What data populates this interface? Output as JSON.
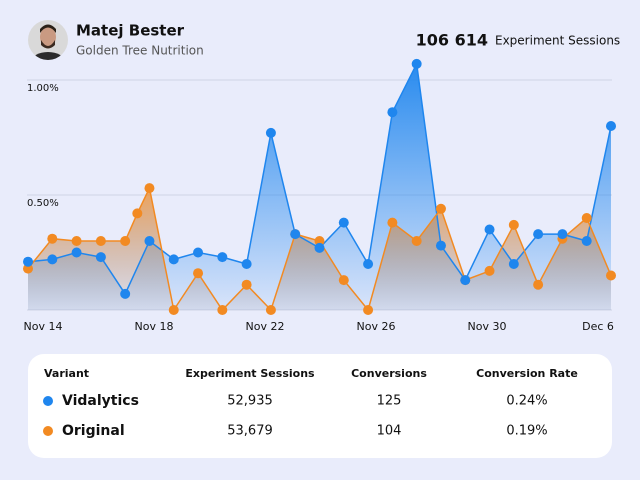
{
  "header": {
    "name": "Matej Bester",
    "company": "Golden Tree Nutrition",
    "total": "106 614",
    "total_label": "Experiment Sessions"
  },
  "chart_data": {
    "type": "line",
    "series": [
      {
        "name": "Vidalytics",
        "color": "#1f86ee",
        "x": [
          0,
          1,
          2,
          3,
          4,
          5,
          6,
          7,
          8,
          9,
          10,
          11,
          12,
          13,
          14,
          15,
          16,
          17,
          18,
          19,
          20,
          21,
          22,
          23,
          24
        ],
        "values": [
          0.21,
          0.22,
          0.25,
          0.23,
          0.07,
          0.3,
          0.22,
          0.25,
          0.23,
          0.2,
          0.77,
          0.33,
          0.27,
          0.38,
          0.2,
          0.86,
          1.07,
          0.28,
          0.13,
          0.35,
          0.2,
          0.33,
          0.33,
          0.3,
          0.8
        ]
      },
      {
        "name": "Original",
        "color": "#f28a22",
        "x": [
          0,
          1,
          2,
          3,
          4,
          4.5,
          5,
          6,
          7,
          8,
          9,
          10,
          11,
          12,
          13,
          14,
          15,
          16,
          17,
          18,
          19,
          20,
          21,
          22,
          23,
          24
        ],
        "values": [
          0.18,
          0.31,
          0.3,
          0.3,
          0.3,
          0.42,
          0.53,
          0,
          0.16,
          0,
          0.11,
          0,
          0.33,
          0.3,
          0.13,
          0,
          0.38,
          0.3,
          0.44,
          0.13,
          0.17,
          0.37,
          0.11,
          0.31,
          0.4,
          0.15
        ]
      }
    ],
    "x_labels": [
      "Nov 14",
      "Nov 18",
      "Nov 22",
      "Nov 26",
      "Nov 30",
      "Dec 6"
    ],
    "xlim": [
      0,
      24
    ],
    "ylim": [
      0,
      1.1
    ],
    "yticks": [
      {
        "value": 0.5,
        "label": "0.50%"
      },
      {
        "value": 1,
        "label": "1.00%"
      }
    ],
    "grid": true
  },
  "table": {
    "columns": [
      "Variant",
      "Experiment Sessions",
      "Conversions",
      "Conversion Rate"
    ],
    "rows": [
      [
        "52,935",
        "125",
        "0.24%"
      ],
      [
        "53,679",
        "104",
        "0.19%"
      ]
    ]
  }
}
